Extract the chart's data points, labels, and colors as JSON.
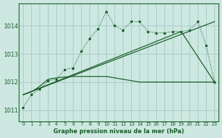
{
  "title": "Graphe pression niveau de la mer (hPa)",
  "bg_color": "#cce8e0",
  "grid_color": "#aacccc",
  "line_color": "#1a5c2a",
  "text_color": "#1a5c2a",
  "xlim": [
    -0.5,
    23.5
  ],
  "ylim": [
    1010.6,
    1014.8
  ],
  "yticks": [
    1011,
    1012,
    1013,
    1014
  ],
  "xticks": [
    0,
    1,
    2,
    3,
    4,
    5,
    6,
    7,
    8,
    9,
    10,
    11,
    12,
    13,
    14,
    15,
    16,
    17,
    18,
    19,
    20,
    21,
    22,
    23
  ],
  "series1_x": [
    0,
    1,
    2,
    3,
    4,
    5,
    6,
    7,
    8,
    9,
    10,
    11,
    12,
    13,
    14,
    15,
    16,
    17,
    18,
    19,
    20,
    21,
    22,
    23
  ],
  "series1_y": [
    1011.1,
    1011.55,
    1011.75,
    1012.05,
    1012.1,
    1012.45,
    1012.5,
    1013.1,
    1013.55,
    1013.9,
    1014.5,
    1014.0,
    1013.85,
    1014.15,
    1014.15,
    1013.8,
    1013.75,
    1013.75,
    1013.8,
    1013.8,
    1013.85,
    1014.15,
    1013.3,
    1012.0
  ],
  "series2_x": [
    0,
    1,
    2,
    3,
    4,
    5,
    6,
    7,
    8,
    9,
    10,
    14,
    15,
    16,
    17,
    18,
    19,
    20,
    21,
    22,
    23
  ],
  "series2_y": [
    1011.55,
    1011.65,
    1011.85,
    1012.1,
    1012.15,
    1012.18,
    1012.2,
    1012.2,
    1012.2,
    1012.2,
    1012.2,
    1012.0,
    1012.0,
    1012.0,
    1012.0,
    1012.0,
    1012.0,
    1012.0,
    1012.0,
    1012.0,
    1012.0
  ],
  "series3_x": [
    0,
    23
  ],
  "series3_y": [
    1011.55,
    1014.15
  ],
  "series4_x": [
    0,
    19,
    23
  ],
  "series4_y": [
    1011.55,
    1013.8,
    1012.0
  ]
}
